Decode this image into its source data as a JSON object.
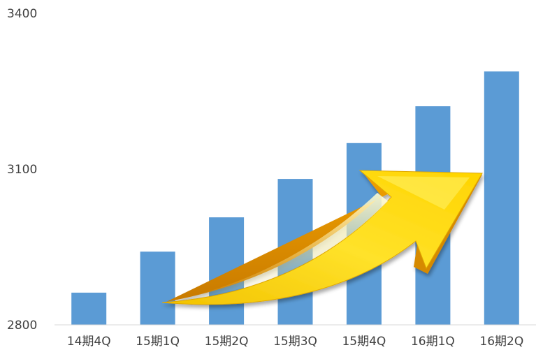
{
  "chart_data": {
    "type": "bar",
    "title": "",
    "xlabel": "",
    "ylabel": "",
    "categories": [
      "14期4Q",
      "15期1Q",
      "15期2Q",
      "15期3Q",
      "15期4Q",
      "16期1Q",
      "16期2Q"
    ],
    "values": [
      2862,
      2941,
      3007,
      3081,
      3150,
      3221,
      3288
    ],
    "ylim": [
      2800,
      3400
    ],
    "yticks": [
      "2800",
      "3100",
      "3400"
    ],
    "grid": false,
    "legend": "none",
    "bar_color": "#5b9bd5",
    "axis_color": "#d9d9d9",
    "decoration": "upward-arrow"
  }
}
